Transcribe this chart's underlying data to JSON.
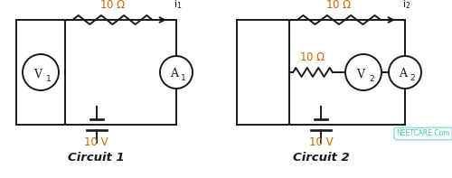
{
  "bg_color": "#ffffff",
  "line_color": "#1a1a1a",
  "orange_color": "#cc6600",
  "title1": "Circuit 1",
  "title2": "Circuit 2",
  "watermark": "NEETCARE.Com",
  "fig_width": 5.0,
  "fig_height": 1.97,
  "dpi": 100
}
